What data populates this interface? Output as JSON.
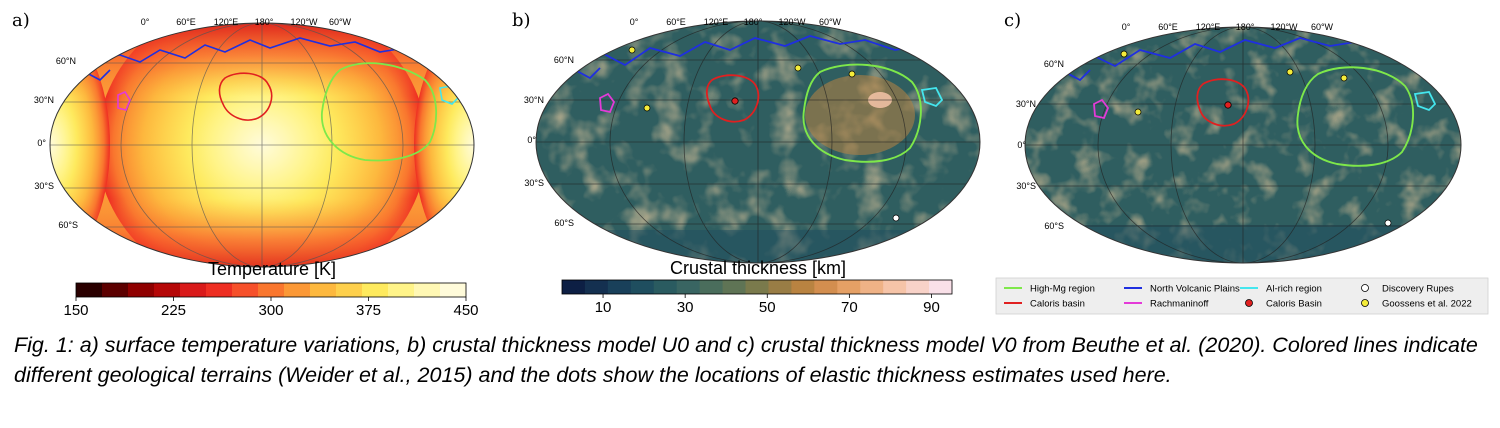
{
  "chart_data": [
    {
      "type": "heatmap",
      "panel": "a)",
      "colorbar": {
        "label": "Temperature [K]",
        "ticks": [
          150,
          225,
          300,
          375,
          450
        ],
        "range": [
          150,
          450
        ],
        "colors": [
          "#2a0000",
          "#5c0000",
          "#8f0000",
          "#b50707",
          "#d91a1a",
          "#ee2e22",
          "#f6502a",
          "#f9762e",
          "#fb9836",
          "#fdb83e",
          "#fed04c",
          "#feea5e",
          "#fff489",
          "#fff8b4",
          "#fffbda"
        ]
      },
      "lon_ticks": [
        "0°",
        "60°E",
        "120°E",
        "180°",
        "120°W",
        "60°W"
      ],
      "lat_ticks": [
        "60°N",
        "30°N",
        "0°",
        "30°S",
        "60°S"
      ]
    },
    {
      "type": "heatmap",
      "panel": "b)",
      "colorbar": {
        "label": "Crustal thickness [km]",
        "ticks": [
          10,
          30,
          50,
          70,
          90
        ],
        "range": [
          0,
          95
        ],
        "colors": [
          "#0d1f44",
          "#143050",
          "#19405a",
          "#1f4e5f",
          "#2a5b60",
          "#396562",
          "#4a6d5c",
          "#5f7455",
          "#7a7a4c",
          "#997d45",
          "#b98341",
          "#d38e4f",
          "#e5a065",
          "#efb286",
          "#f6c4a8",
          "#f8d2c8",
          "#f9e0e8"
        ]
      },
      "lon_ticks": [
        "0°",
        "60°E",
        "120°E",
        "180°",
        "120°W",
        "60°W"
      ],
      "lat_ticks": [
        "60°N",
        "30°N",
        "0°",
        "30°S",
        "60°S"
      ]
    },
    {
      "type": "heatmap",
      "panel": "c)",
      "lon_ticks": [
        "0°",
        "60°E",
        "120°E",
        "180°",
        "120°W",
        "60°W"
      ],
      "lat_ticks": [
        "60°N",
        "30°N",
        "0°",
        "30°S",
        "60°S"
      ],
      "legend": [
        {
          "label": "High-Mg region",
          "marker": "line",
          "color": "#7ee84a"
        },
        {
          "label": "North Volcanic Plains",
          "marker": "line",
          "color": "#1f2fe0"
        },
        {
          "label": "Al-rich region",
          "marker": "line",
          "color": "#44e6ee"
        },
        {
          "label": "Discovery Rupes",
          "marker": "dot",
          "color": "#ffffff"
        },
        {
          "label": "Caloris basin",
          "marker": "line",
          "color": "#e02020"
        },
        {
          "label": "Rachmaninoff",
          "marker": "line",
          "color": "#e43ad8"
        },
        {
          "label": "Caloris Basin",
          "marker": "dot",
          "color": "#e02020"
        },
        {
          "label": "Goossens et al. 2022",
          "marker": "dot",
          "color": "#f4ec3a"
        }
      ]
    }
  ],
  "caption": "Fig. 1: a) surface temperature variations, b) crustal thickness model U0 and c) crustal thickness model V0 from Beuthe et al. (2020). Colored lines indicate different geological terrains (Weider et al., 2015) and the dots show the locations of elastic thickness estimates used here."
}
